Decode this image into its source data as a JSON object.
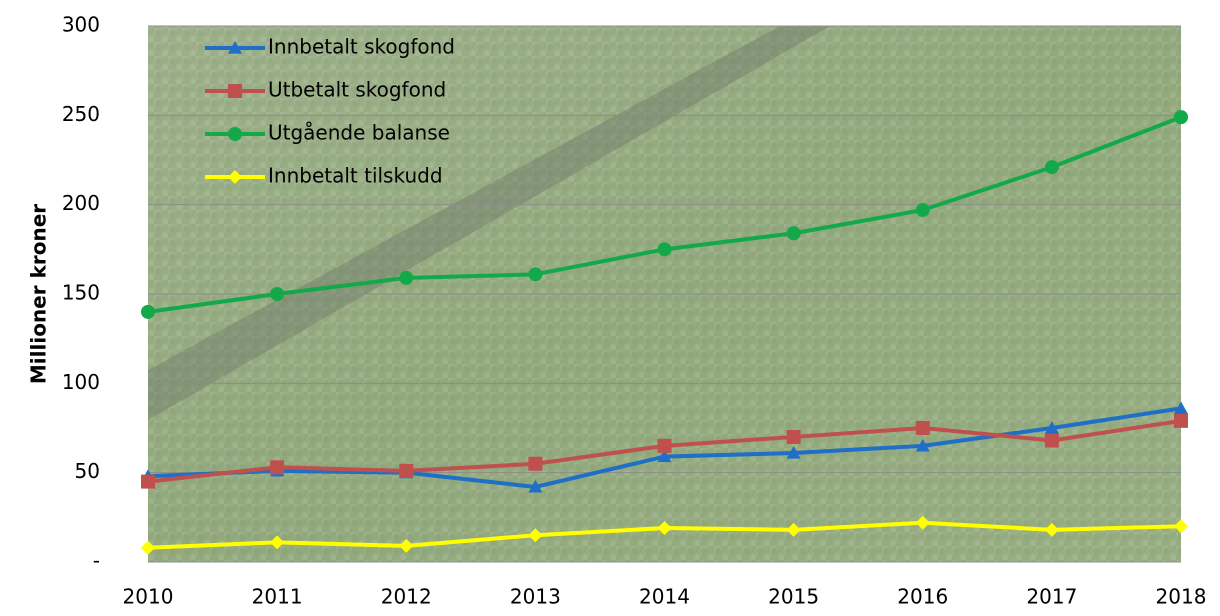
{
  "chart_data": {
    "type": "line",
    "y_label": "Millioner kroner",
    "categories": [
      "2010",
      "2011",
      "2012",
      "2013",
      "2014",
      "2015",
      "2016",
      "2017",
      "2018"
    ],
    "series": [
      {
        "name": "Innbetalt skogfond",
        "color": "#1f6fc6",
        "marker": "triangle",
        "values": [
          48,
          51,
          50,
          42,
          59,
          61,
          65,
          75,
          86
        ]
      },
      {
        "name": "Utbetalt skogfond",
        "color": "#c0504d",
        "marker": "square",
        "values": [
          45,
          53,
          51,
          55,
          65,
          70,
          75,
          68,
          79
        ]
      },
      {
        "name": "Utgående balanse",
        "color": "#13a94a",
        "marker": "circle",
        "values": [
          140,
          150,
          159,
          161,
          175,
          184,
          197,
          221,
          249
        ]
      },
      {
        "name": "Innbetalt tilskudd",
        "color": "#ffff00",
        "marker": "diamond",
        "values": [
          8,
          11,
          9,
          15,
          19,
          18,
          22,
          18,
          20
        ]
      }
    ],
    "ylim": [
      0,
      300
    ],
    "yticks": [
      {
        "value": 0,
        "label": "-"
      },
      50,
      100,
      150,
      200,
      250,
      300
    ],
    "grid": true,
    "legend": "upper left"
  }
}
